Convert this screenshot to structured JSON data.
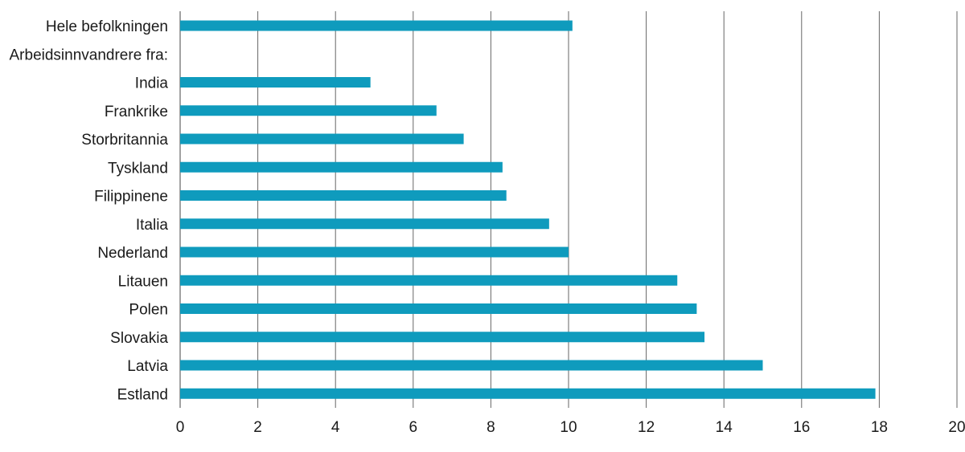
{
  "chart_data": {
    "type": "bar",
    "orientation": "horizontal",
    "title": "",
    "xlabel": "",
    "ylabel": "",
    "categories": [
      "Hele befolkningen",
      "Arbeidsinnvandrere fra:",
      "India",
      "Frankrike",
      "Storbritannia",
      "Tyskland",
      "Filippinene",
      "Italia",
      "Nederland",
      "Litauen",
      "Polen",
      "Slovakia",
      "Latvia",
      "Estland"
    ],
    "values": [
      10.1,
      null,
      4.9,
      6.6,
      7.3,
      8.3,
      8.4,
      9.5,
      10.0,
      12.8,
      13.3,
      13.5,
      15.0,
      17.9
    ],
    "xlim": [
      0,
      20
    ],
    "xticks": [
      "0",
      "2",
      "4",
      "6",
      "8",
      "10",
      "12",
      "14",
      "16",
      "18",
      "20"
    ],
    "grid": true,
    "colors": {
      "bar": "#0f9bbd",
      "grid": "#666666"
    }
  }
}
